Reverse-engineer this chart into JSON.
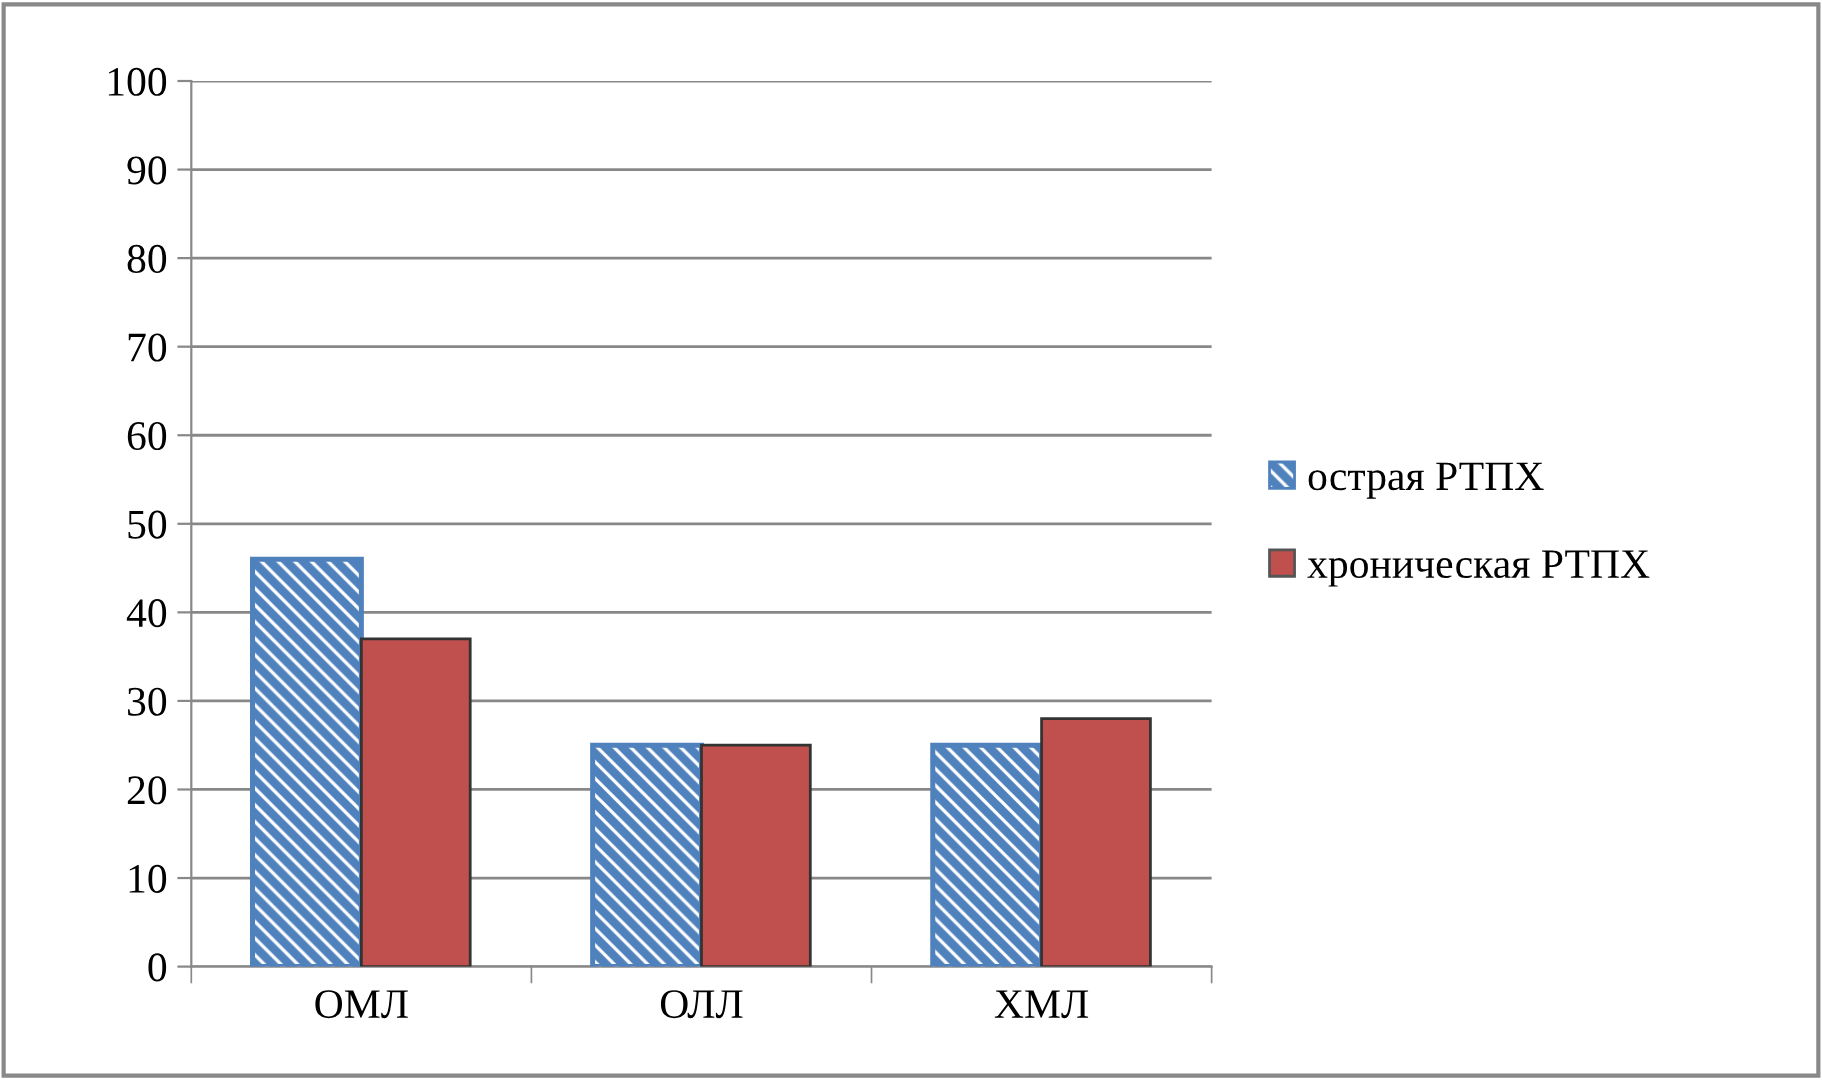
{
  "chart_data": {
    "type": "bar",
    "categories": [
      "ОМЛ",
      "ОЛЛ",
      "ХМЛ"
    ],
    "series": [
      {
        "name": "острая РТПХ",
        "color": "#4f81bd",
        "values": [
          46,
          25,
          25
        ]
      },
      {
        "name": "хроническая РТПХ",
        "color": "#c0504d",
        "values": [
          37,
          25,
          28
        ]
      }
    ],
    "ylim": [
      0,
      100
    ],
    "yticks": [
      0,
      10,
      20,
      30,
      40,
      50,
      60,
      70,
      80,
      90,
      100
    ],
    "grid": "y",
    "legend": "right"
  }
}
